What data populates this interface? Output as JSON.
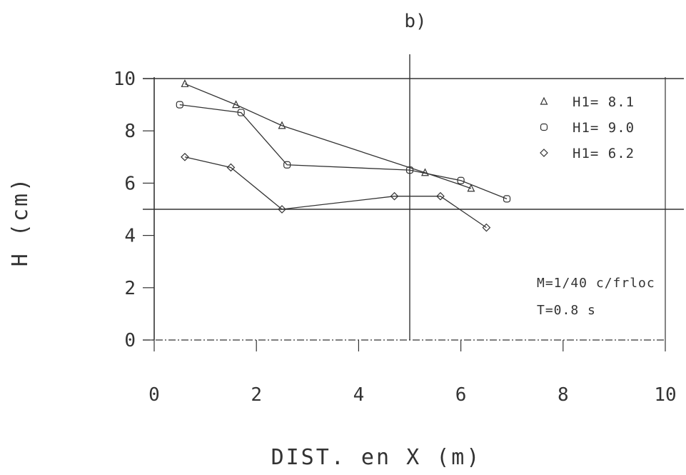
{
  "chart_data": {
    "type": "line",
    "title": "b)",
    "xlabel": "DIST. en X (m)",
    "ylabel": "H (cm)",
    "xlim": [
      0,
      10
    ],
    "ylim": [
      0,
      10
    ],
    "x_ticks": [
      "0",
      "2",
      "4",
      "6",
      "8",
      "10"
    ],
    "y_ticks": [
      "0",
      "2",
      "4",
      "6",
      "8",
      "10"
    ],
    "reference_lines": {
      "y": [
        5,
        10
      ],
      "x": [
        5
      ]
    },
    "legend_position": "top-right",
    "series": [
      {
        "name": "H1= 8.1",
        "marker": "triangle",
        "x": [
          0.6,
          1.6,
          2.5,
          5.3,
          6.2
        ],
        "y": [
          9.8,
          9.0,
          8.2,
          6.4,
          5.8
        ]
      },
      {
        "name": "H1= 9.0",
        "marker": "square",
        "x": [
          0.5,
          1.7,
          2.6,
          5.0,
          6.0,
          6.9
        ],
        "y": [
          9.0,
          8.7,
          6.7,
          6.5,
          6.1,
          5.4
        ]
      },
      {
        "name": "H1= 6.2",
        "marker": "diamond",
        "x": [
          0.6,
          1.5,
          2.5,
          4.7,
          5.6,
          6.5
        ],
        "y": [
          7.0,
          6.6,
          5.0,
          5.5,
          5.5,
          4.3
        ]
      }
    ],
    "annotations": [
      "M=1/40 c/frloc",
      "T=0.8 s"
    ]
  }
}
